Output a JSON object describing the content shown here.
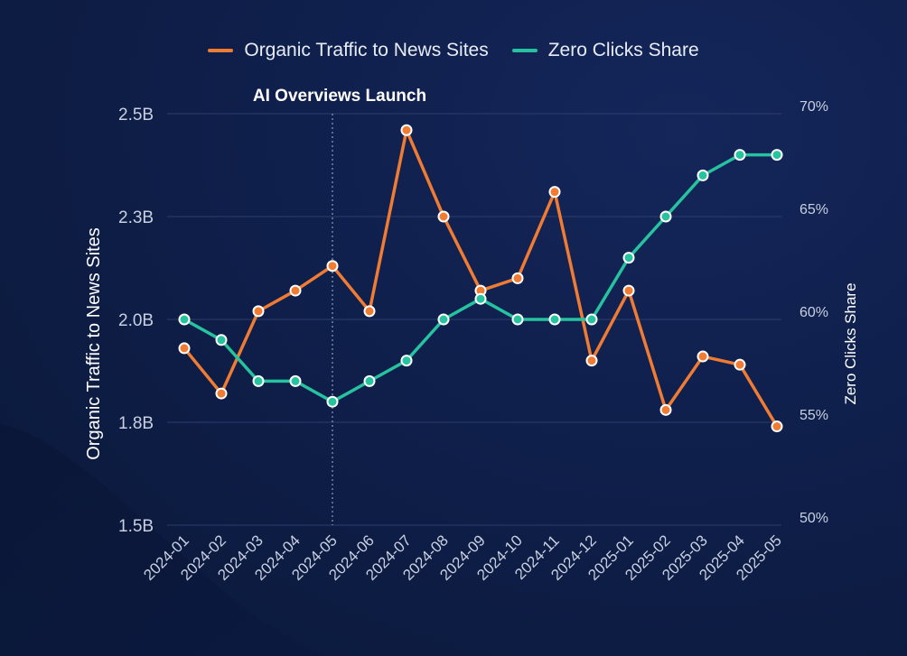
{
  "colors": {
    "background": "#0f1f4b",
    "organic": "#f07b33",
    "zero_clicks": "#27c2a0",
    "grid": "#2c3d6e",
    "text": "#c9d0e0"
  },
  "legend": [
    {
      "label": "Organic Traffic to News Sites",
      "color": "#f07b33"
    },
    {
      "label": "Zero Clicks Share",
      "color": "#27c2a0"
    }
  ],
  "chart_data": {
    "type": "line",
    "x": [
      "2024-01",
      "2024-02",
      "2024-03",
      "2024-04",
      "2024-05",
      "2024-06",
      "2024-07",
      "2024-08",
      "2024-09",
      "2024-10",
      "2024-11",
      "2024-12",
      "2025-01",
      "2025-02",
      "2025-03",
      "2025-04",
      "2025-05"
    ],
    "series": [
      {
        "name": "Organic Traffic to News Sites",
        "axis": "left",
        "color": "#f07b33",
        "values": [
          1.93,
          1.82,
          2.02,
          2.07,
          2.13,
          2.02,
          2.46,
          2.25,
          2.07,
          2.1,
          2.31,
          1.9,
          2.07,
          1.78,
          1.91,
          1.89,
          1.74
        ]
      },
      {
        "name": "Zero Clicks Share",
        "axis": "right",
        "color": "#27c2a0",
        "values": [
          60,
          59,
          57,
          57,
          56,
          57,
          58,
          60,
          61,
          60,
          60,
          60,
          63,
          65,
          67,
          68,
          68
        ]
      }
    ],
    "ylabel": "Organic Traffic to News Sites",
    "y2label": "Zero Clicks Share",
    "ylim": [
      1.5,
      2.5
    ],
    "y2lim": [
      50,
      70
    ],
    "yticks": [
      {
        "value": 2.5,
        "label": "2.5B"
      },
      {
        "value": 2.25,
        "label": "2.3B"
      },
      {
        "value": 2.0,
        "label": "2.0B"
      },
      {
        "value": 1.75,
        "label": "1.8B"
      },
      {
        "value": 1.5,
        "label": "1.5B"
      }
    ],
    "y2ticks": [
      {
        "value": 70,
        "label": "70%"
      },
      {
        "value": 65,
        "label": "65%"
      },
      {
        "value": 60,
        "label": "60%"
      },
      {
        "value": 55,
        "label": "55%"
      },
      {
        "value": 50,
        "label": "50%"
      }
    ],
    "annotation": {
      "x": "2024-05",
      "label": "AI Overviews Launch"
    },
    "grid": true,
    "legend_position": "top-center"
  }
}
